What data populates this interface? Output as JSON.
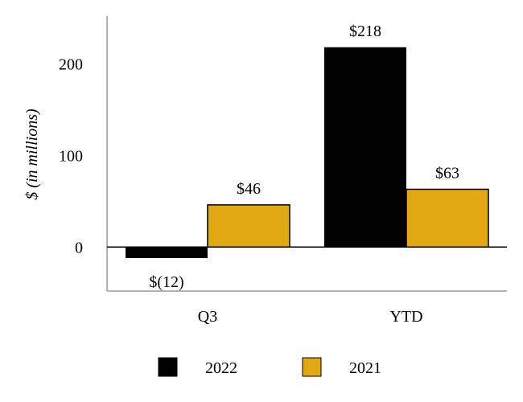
{
  "chart_data": {
    "type": "bar",
    "title": "",
    "xlabel": "",
    "ylabel": "$ (in millions)",
    "ylim": [
      -48,
      252
    ],
    "yticks": [
      0,
      100,
      200
    ],
    "ytick_labels": [
      "0",
      "100",
      "200"
    ],
    "categories": [
      "Q3",
      "YTD"
    ],
    "series": [
      {
        "name": "2022",
        "values": [
          -12,
          218
        ],
        "labels": [
          "$(12)",
          "$218"
        ],
        "color": "#000000"
      },
      {
        "name": "2021",
        "values": [
          46,
          63
        ],
        "labels": [
          "$46",
          "$63"
        ],
        "color": "#E2A814"
      }
    ],
    "grid": false,
    "legend": "bottom"
  }
}
